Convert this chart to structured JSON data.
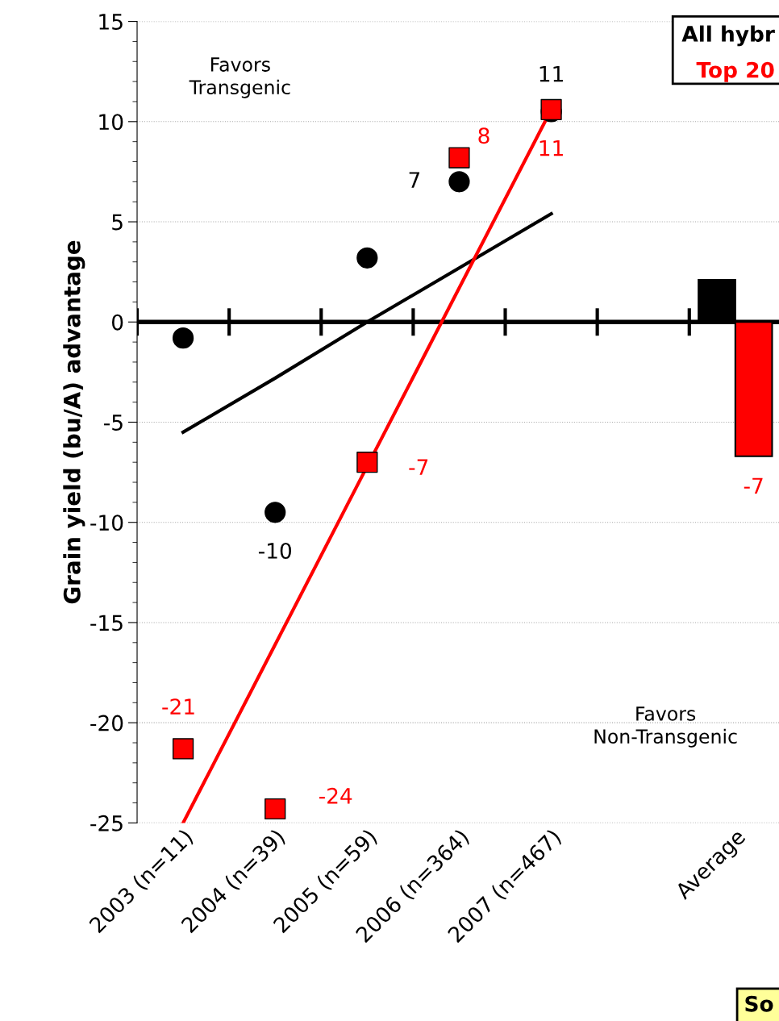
{
  "chart_data": {
    "type": "scatter",
    "ylabel": "Grain yield (bu/A) advantage",
    "categories": [
      "2003 (n=11)",
      "2004 (n=39)",
      "2005 (n=59)",
      "2006 (n=364)",
      "2007 (n=467)",
      null,
      "Average"
    ],
    "series": [
      {
        "name": "All hybr",
        "color": "#000000",
        "marker": "circle",
        "values": [
          -0.8,
          -9.5,
          3.2,
          7.0,
          10.5,
          null,
          null
        ],
        "value_labels": [
          null,
          "-10",
          null,
          "7",
          "11",
          null,
          null
        ]
      },
      {
        "name": "Top 20",
        "color": "#ff0000",
        "marker": "square",
        "values": [
          -21.3,
          -24.3,
          -7.0,
          8.2,
          10.6,
          null,
          null
        ],
        "value_labels": [
          "-21",
          "-24",
          "-7",
          "8",
          "11",
          null,
          null
        ]
      },
      {
        "type": "line",
        "color": "#000000",
        "values": [
          -5.5,
          -2.8,
          0.0,
          2.7,
          5.4,
          null,
          null
        ]
      },
      {
        "type": "line",
        "color": "#ff0000",
        "values": [
          -25.0,
          -16.1,
          -7.2,
          1.7,
          10.6,
          null,
          null
        ]
      },
      {
        "type": "bar",
        "color": "#000000",
        "values": [
          null,
          null,
          null,
          null,
          null,
          null,
          2.1
        ]
      },
      {
        "type": "bar",
        "color": "#ff0000",
        "values": [
          null,
          null,
          null,
          null,
          null,
          null,
          -6.7
        ],
        "value_labels": [
          null,
          null,
          null,
          null,
          null,
          null,
          "-7"
        ]
      }
    ],
    "ylim": [
      -25,
      15
    ],
    "yticks": [
      -25,
      -20,
      -15,
      -10,
      -5,
      0,
      5,
      10,
      15
    ],
    "grid": "y",
    "legend": "top right",
    "ref_lines": [
      {
        "axis": "y",
        "value": 0,
        "color": "#000000"
      }
    ],
    "annotations": [
      "Favors\nTransgenic",
      "Favors\nNon-Transgenic",
      "So"
    ]
  }
}
